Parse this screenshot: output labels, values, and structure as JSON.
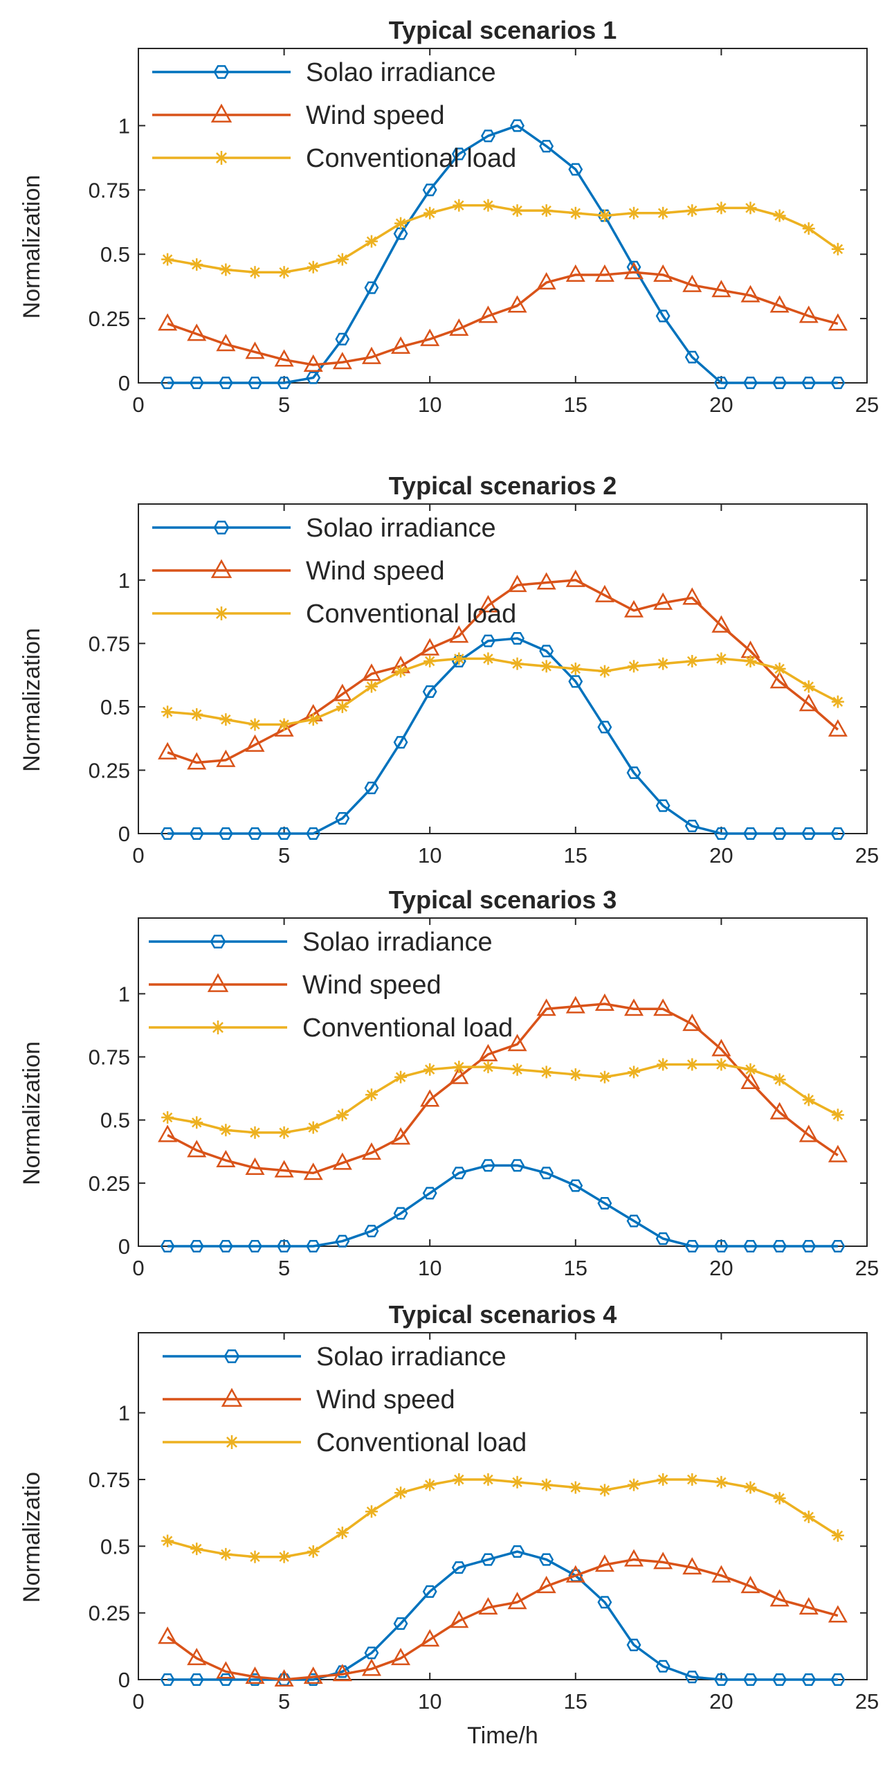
{
  "chart_data": [
    {
      "type": "line",
      "title": "Typical scenarios 1",
      "xlabel": "",
      "ylabel": "Normalization",
      "xlim": [
        0,
        25
      ],
      "ylim": [
        0,
        1.3
      ],
      "xticks": [
        "0",
        "5",
        "10",
        "15",
        "20",
        "25"
      ],
      "yticks": [
        "0",
        "0.25",
        "0.5",
        "0.75",
        "1"
      ],
      "grid": false,
      "legend_position": "top-left",
      "x": [
        1,
        2,
        3,
        4,
        5,
        6,
        7,
        8,
        9,
        10,
        11,
        12,
        13,
        14,
        15,
        16,
        17,
        18,
        19,
        20,
        21,
        22,
        23,
        24
      ],
      "series": [
        {
          "name": "Solao irradiance",
          "color": "#0072BD",
          "marker": "hexagon",
          "values": [
            0,
            0,
            0,
            0,
            0,
            0.02,
            0.17,
            0.37,
            0.58,
            0.75,
            0.89,
            0.96,
            1.0,
            0.92,
            0.83,
            0.65,
            0.45,
            0.26,
            0.1,
            0,
            0,
            0,
            0,
            0
          ]
        },
        {
          "name": "Wind speed",
          "color": "#D95319",
          "marker": "triangle",
          "values": [
            0.23,
            0.19,
            0.15,
            0.12,
            0.09,
            0.07,
            0.08,
            0.1,
            0.14,
            0.17,
            0.21,
            0.26,
            0.3,
            0.39,
            0.42,
            0.42,
            0.43,
            0.42,
            0.38,
            0.36,
            0.34,
            0.3,
            0.26,
            0.23
          ]
        },
        {
          "name": "Conventional load",
          "color": "#EDB120",
          "marker": "asterisk",
          "values": [
            0.48,
            0.46,
            0.44,
            0.43,
            0.43,
            0.45,
            0.48,
            0.55,
            0.62,
            0.66,
            0.69,
            0.69,
            0.67,
            0.67,
            0.66,
            0.65,
            0.66,
            0.66,
            0.67,
            0.68,
            0.68,
            0.65,
            0.6,
            0.52
          ]
        }
      ]
    },
    {
      "type": "line",
      "title": "Typical scenarios 2",
      "xlabel": "",
      "ylabel": "Normalization",
      "xlim": [
        0,
        25
      ],
      "ylim": [
        0,
        1.3
      ],
      "xticks": [
        "0",
        "5",
        "10",
        "15",
        "20",
        "25"
      ],
      "yticks": [
        "0",
        "0.25",
        "0.5",
        "0.75",
        "1"
      ],
      "grid": false,
      "legend_position": "top-left",
      "x": [
        1,
        2,
        3,
        4,
        5,
        6,
        7,
        8,
        9,
        10,
        11,
        12,
        13,
        14,
        15,
        16,
        17,
        18,
        19,
        20,
        21,
        22,
        23,
        24
      ],
      "series": [
        {
          "name": "Solao irradiance",
          "color": "#0072BD",
          "marker": "hexagon",
          "values": [
            0,
            0,
            0,
            0,
            0,
            0,
            0.06,
            0.18,
            0.36,
            0.56,
            0.68,
            0.76,
            0.77,
            0.72,
            0.6,
            0.42,
            0.24,
            0.11,
            0.03,
            0,
            0,
            0,
            0,
            0
          ]
        },
        {
          "name": "Wind speed",
          "color": "#D95319",
          "marker": "triangle",
          "values": [
            0.32,
            0.28,
            0.29,
            0.35,
            0.41,
            0.47,
            0.55,
            0.63,
            0.66,
            0.73,
            0.78,
            0.9,
            0.98,
            0.99,
            1.0,
            0.94,
            0.88,
            0.91,
            0.93,
            0.82,
            0.72,
            0.6,
            0.51,
            0.41
          ]
        },
        {
          "name": "Conventional load",
          "color": "#EDB120",
          "marker": "asterisk",
          "values": [
            0.48,
            0.47,
            0.45,
            0.43,
            0.43,
            0.45,
            0.5,
            0.58,
            0.64,
            0.68,
            0.69,
            0.69,
            0.67,
            0.66,
            0.65,
            0.64,
            0.66,
            0.67,
            0.68,
            0.69,
            0.68,
            0.65,
            0.58,
            0.52
          ]
        }
      ]
    },
    {
      "type": "line",
      "title": "Typical scenarios 3",
      "xlabel": "",
      "ylabel": "Normalization",
      "xlim": [
        0,
        25
      ],
      "ylim": [
        0,
        1.3
      ],
      "xticks": [
        "0",
        "5",
        "10",
        "15",
        "20",
        "25"
      ],
      "yticks": [
        "0",
        "0.25",
        "0.5",
        "0.75",
        "1"
      ],
      "grid": false,
      "legend_position": "top-left",
      "x": [
        1,
        2,
        3,
        4,
        5,
        6,
        7,
        8,
        9,
        10,
        11,
        12,
        13,
        14,
        15,
        16,
        17,
        18,
        19,
        20,
        21,
        22,
        23,
        24
      ],
      "series": [
        {
          "name": "Solao irradiance",
          "color": "#0072BD",
          "marker": "hexagon",
          "values": [
            0,
            0,
            0,
            0,
            0,
            0,
            0.02,
            0.06,
            0.13,
            0.21,
            0.29,
            0.32,
            0.32,
            0.29,
            0.24,
            0.17,
            0.1,
            0.03,
            0,
            0,
            0,
            0,
            0,
            0
          ]
        },
        {
          "name": "Wind speed",
          "color": "#D95319",
          "marker": "triangle",
          "values": [
            0.44,
            0.38,
            0.34,
            0.31,
            0.3,
            0.29,
            0.33,
            0.37,
            0.43,
            0.58,
            0.67,
            0.76,
            0.8,
            0.94,
            0.95,
            0.96,
            0.94,
            0.94,
            0.88,
            0.78,
            0.65,
            0.53,
            0.44,
            0.36
          ]
        },
        {
          "name": "Conventional load",
          "color": "#EDB120",
          "marker": "asterisk",
          "values": [
            0.51,
            0.49,
            0.46,
            0.45,
            0.45,
            0.47,
            0.52,
            0.6,
            0.67,
            0.7,
            0.71,
            0.71,
            0.7,
            0.69,
            0.68,
            0.67,
            0.69,
            0.72,
            0.72,
            0.72,
            0.7,
            0.66,
            0.58,
            0.52
          ]
        }
      ]
    },
    {
      "type": "line",
      "title": "Typical scenarios 4",
      "xlabel": "Time/h",
      "ylabel": "Normalizatio",
      "xlim": [
        0,
        25
      ],
      "ylim": [
        0,
        1.3
      ],
      "xticks": [
        "0",
        "5",
        "10",
        "15",
        "20",
        "25"
      ],
      "yticks": [
        "0",
        "0.25",
        "0.5",
        "0.75",
        "1"
      ],
      "grid": false,
      "legend_position": "top-left",
      "x": [
        1,
        2,
        3,
        4,
        5,
        6,
        7,
        8,
        9,
        10,
        11,
        12,
        13,
        14,
        15,
        16,
        17,
        18,
        19,
        20,
        21,
        22,
        23,
        24
      ],
      "series": [
        {
          "name": "Solao irradiance",
          "color": "#0072BD",
          "marker": "hexagon",
          "values": [
            0,
            0,
            0,
            0,
            0,
            0,
            0.03,
            0.1,
            0.21,
            0.33,
            0.42,
            0.45,
            0.48,
            0.45,
            0.39,
            0.29,
            0.13,
            0.05,
            0.01,
            0,
            0,
            0,
            0,
            0
          ]
        },
        {
          "name": "Wind speed",
          "color": "#D95319",
          "marker": "triangle",
          "values": [
            0.16,
            0.08,
            0.03,
            0.01,
            0,
            0.01,
            0.02,
            0.04,
            0.08,
            0.15,
            0.22,
            0.27,
            0.29,
            0.35,
            0.39,
            0.43,
            0.45,
            0.44,
            0.42,
            0.39,
            0.35,
            0.3,
            0.27,
            0.24
          ]
        },
        {
          "name": "Conventional load",
          "color": "#EDB120",
          "marker": "asterisk",
          "values": [
            0.52,
            0.49,
            0.47,
            0.46,
            0.46,
            0.48,
            0.55,
            0.63,
            0.7,
            0.73,
            0.75,
            0.75,
            0.74,
            0.73,
            0.72,
            0.71,
            0.73,
            0.75,
            0.75,
            0.74,
            0.72,
            0.68,
            0.61,
            0.54
          ]
        }
      ]
    }
  ]
}
